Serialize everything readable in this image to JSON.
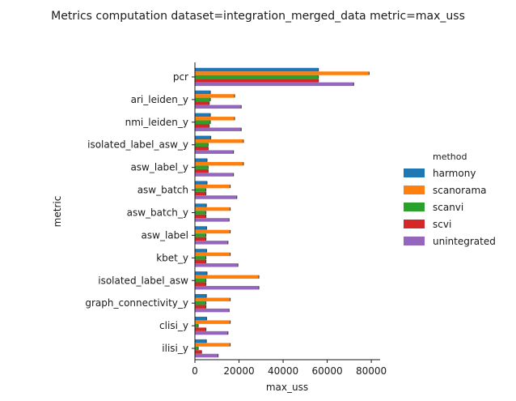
{
  "chart_data": {
    "type": "bar",
    "orientation": "horizontal",
    "title": "Metrics computation dataset=integration_merged_data metric=max_uss",
    "xlabel": "max_uss",
    "ylabel": "metric",
    "xlim": [
      0,
      84000
    ],
    "xticks": [
      0,
      20000,
      40000,
      60000,
      80000
    ],
    "xtick_labels": [
      "0",
      "20000",
      "40000",
      "60000",
      "80000"
    ],
    "grid": false,
    "legend_position": "right",
    "legend_title": "method",
    "categories": [
      "pcr",
      "ari_leiden_y",
      "nmi_leiden_y",
      "isolated_label_asw_y",
      "asw_label_y",
      "asw_batch",
      "asw_batch_y",
      "asw_label",
      "kbet_y",
      "isolated_label_asw",
      "graph_connectivity_y",
      "clisi_y",
      "ilisi_y"
    ],
    "series": [
      {
        "name": "harmony",
        "color": "#1f77b4",
        "values": [
          56000,
          7000,
          7000,
          7200,
          5500,
          5500,
          5200,
          5300,
          5300,
          5500,
          5200,
          5300,
          5200
        ]
      },
      {
        "name": "scanorama",
        "color": "#ff7f0e",
        "values": [
          79000,
          18000,
          18000,
          22000,
          22000,
          16000,
          16000,
          16000,
          16000,
          29000,
          16000,
          16000,
          16000
        ]
      },
      {
        "name": "scanvi",
        "color": "#2ca02c",
        "values": [
          56000,
          7000,
          7000,
          6000,
          6000,
          5000,
          5000,
          5000,
          5000,
          5000,
          5000,
          1500,
          1500
        ]
      },
      {
        "name": "scvi",
        "color": "#d62728",
        "values": [
          56000,
          6500,
          6500,
          6000,
          6000,
          5000,
          5000,
          5000,
          5000,
          5000,
          5000,
          5000,
          3000
        ]
      },
      {
        "name": "unintegrated",
        "color": "#9467bd",
        "values": [
          72000,
          21000,
          21000,
          17500,
          17500,
          19000,
          15500,
          15000,
          19500,
          29000,
          15500,
          15000,
          10500
        ]
      }
    ]
  }
}
